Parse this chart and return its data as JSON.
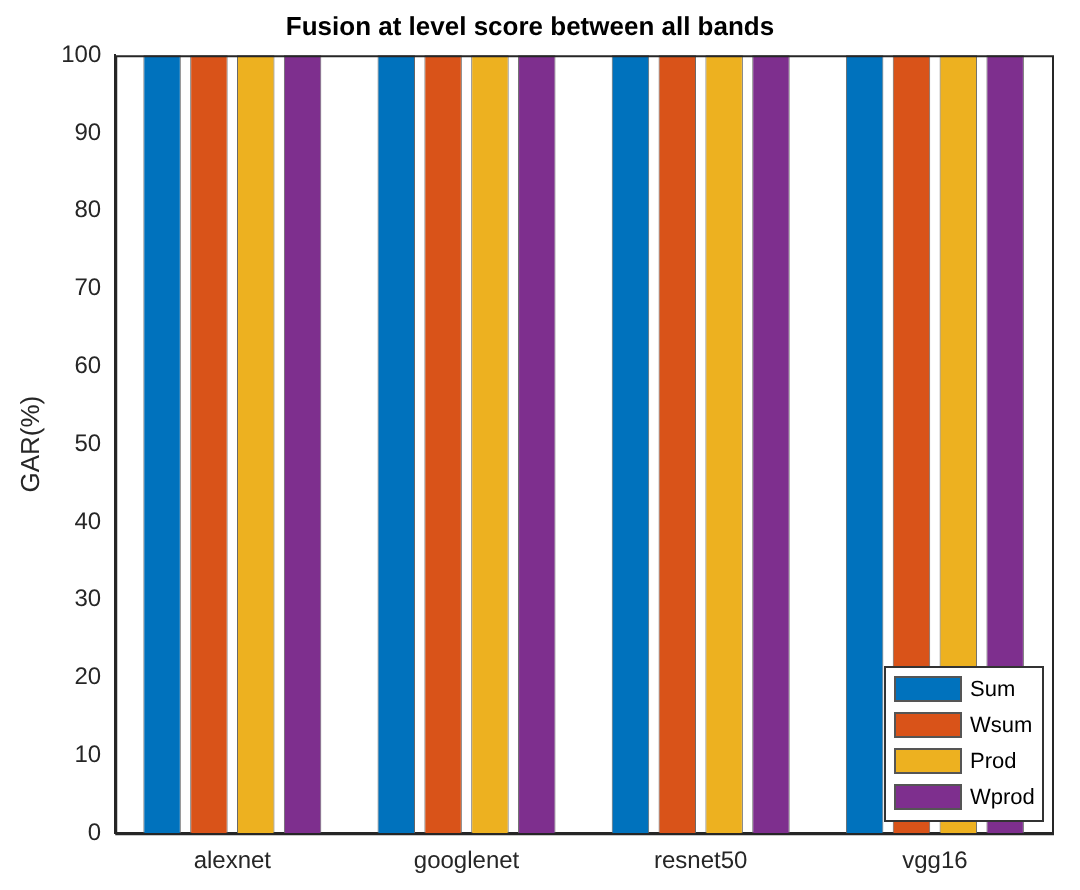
{
  "chart_data": {
    "type": "bar",
    "title": "Fusion at level score between all bands",
    "ylabel": "GAR(%)",
    "categories": [
      "alexnet",
      "googlenet",
      "resnet50",
      "vgg16"
    ],
    "series": [
      {
        "name": "Sum",
        "color": "#0072bd",
        "values": [
          100,
          100,
          100,
          100
        ]
      },
      {
        "name": "Wsum",
        "color": "#d95319",
        "values": [
          100,
          100,
          100,
          100
        ]
      },
      {
        "name": "Prod",
        "color": "#edb120",
        "values": [
          100,
          100,
          100,
          100
        ]
      },
      {
        "name": "Wprod",
        "color": "#7e2f8e",
        "values": [
          100,
          100,
          100,
          100
        ]
      }
    ],
    "ylim": [
      0,
      100
    ],
    "yticks": [
      0,
      10,
      20,
      30,
      40,
      50,
      60,
      70,
      80,
      90,
      100
    ],
    "grid": false,
    "legend": "bottom right"
  }
}
